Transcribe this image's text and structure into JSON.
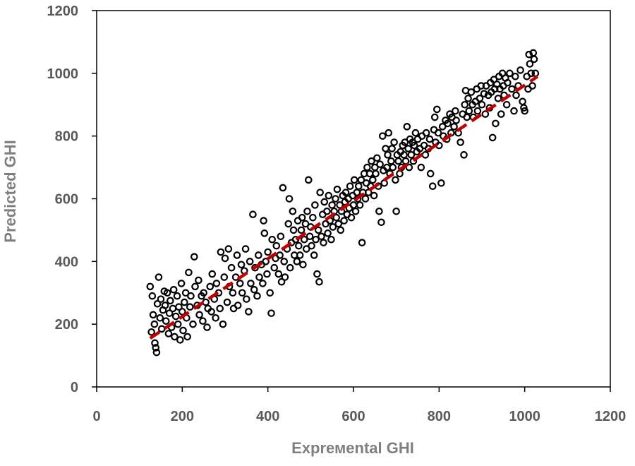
{
  "chart_data": {
    "type": "scatter",
    "title": "",
    "xlabel": "Exprемental GHI",
    "ylabel": "Predicted GHI",
    "xlim": [
      0,
      1200
    ],
    "ylim": [
      0,
      1200
    ],
    "xticks": [
      "0",
      "200",
      "400",
      "600",
      "800",
      "1000",
      "1200"
    ],
    "yticks": [
      "0",
      "200",
      "400",
      "600",
      "800",
      "1000",
      "1200"
    ],
    "grid": false,
    "legend": "none",
    "colors": {
      "marker": "#000000",
      "trendline": "#c00000",
      "axis": "#000000",
      "tick_text": "#595959",
      "axis_title": "#7f7f7f"
    },
    "trendline": {
      "style": "dashed",
      "x": [
        125,
        1030
      ],
      "y": [
        155,
        990
      ]
    },
    "series": [
      {
        "marker": "open-circle",
        "points": [
          [
            125,
            320
          ],
          [
            128,
            175
          ],
          [
            130,
            290
          ],
          [
            132,
            230
          ],
          [
            135,
            200
          ],
          [
            136,
            140
          ],
          [
            138,
            125
          ],
          [
            140,
            110
          ],
          [
            142,
            265
          ],
          [
            145,
            350
          ],
          [
            148,
            220
          ],
          [
            150,
            280
          ],
          [
            152,
            185
          ],
          [
            155,
            245
          ],
          [
            158,
            305
          ],
          [
            160,
            260
          ],
          [
            162,
            210
          ],
          [
            165,
            300
          ],
          [
            168,
            170
          ],
          [
            170,
            235
          ],
          [
            172,
            275
          ],
          [
            175,
            190
          ],
          [
            178,
            250
          ],
          [
            180,
            310
          ],
          [
            182,
            160
          ],
          [
            185,
            225
          ],
          [
            188,
            290
          ],
          [
            190,
            200
          ],
          [
            192,
            255
          ],
          [
            195,
            150
          ],
          [
            198,
            330
          ],
          [
            200,
            240
          ],
          [
            202,
            180
          ],
          [
            205,
            270
          ],
          [
            208,
            300
          ],
          [
            210,
            220
          ],
          [
            212,
            160
          ],
          [
            215,
            365
          ],
          [
            218,
            255
          ],
          [
            220,
            290
          ],
          [
            225,
            200
          ],
          [
            228,
            415
          ],
          [
            230,
            320
          ],
          [
            235,
            260
          ],
          [
            238,
            340
          ],
          [
            240,
            230
          ],
          [
            245,
            290
          ],
          [
            248,
            210
          ],
          [
            250,
            300
          ],
          [
            255,
            270
          ],
          [
            258,
            190
          ],
          [
            260,
            250
          ],
          [
            265,
            320
          ],
          [
            268,
            240
          ],
          [
            270,
            360
          ],
          [
            275,
            280
          ],
          [
            278,
            220
          ],
          [
            280,
            330
          ],
          [
            285,
            300
          ],
          [
            288,
            250
          ],
          [
            290,
            430
          ],
          [
            295,
            200
          ],
          [
            298,
            350
          ],
          [
            300,
            410
          ],
          [
            305,
            270
          ],
          [
            308,
            440
          ],
          [
            310,
            320
          ],
          [
            315,
            380
          ],
          [
            318,
            300
          ],
          [
            320,
            250
          ],
          [
            325,
            350
          ],
          [
            328,
            420
          ],
          [
            330,
            260
          ],
          [
            335,
            330
          ],
          [
            338,
            390
          ],
          [
            340,
            300
          ],
          [
            345,
            370
          ],
          [
            348,
            440
          ],
          [
            350,
            280
          ],
          [
            355,
            240
          ],
          [
            358,
            400
          ],
          [
            360,
            330
          ],
          [
            365,
            550
          ],
          [
            368,
            310
          ],
          [
            370,
            380
          ],
          [
            375,
            290
          ],
          [
            378,
            420
          ],
          [
            380,
            350
          ],
          [
            385,
            390
          ],
          [
            388,
            330
          ],
          [
            390,
            530
          ],
          [
            392,
            490
          ],
          [
            395,
            400
          ],
          [
            398,
            360
          ],
          [
            400,
            430
          ],
          [
            405,
            300
          ],
          [
            408,
            235
          ],
          [
            410,
            470
          ],
          [
            415,
            380
          ],
          [
            418,
            410
          ],
          [
            420,
            450
          ],
          [
            425,
            360
          ],
          [
            428,
            420
          ],
          [
            430,
            480
          ],
          [
            432,
            335
          ],
          [
            435,
            635
          ],
          [
            438,
            400
          ],
          [
            440,
            350
          ],
          [
            445,
            440
          ],
          [
            448,
            520
          ],
          [
            450,
            600
          ],
          [
            452,
            380
          ],
          [
            455,
            460
          ],
          [
            458,
            560
          ],
          [
            460,
            500
          ],
          [
            462,
            420
          ],
          [
            465,
            470
          ],
          [
            468,
            400
          ],
          [
            470,
            530
          ],
          [
            472,
            450
          ],
          [
            475,
            420
          ],
          [
            478,
            500
          ],
          [
            480,
            540
          ],
          [
            482,
            390
          ],
          [
            485,
            470
          ],
          [
            488,
            520
          ],
          [
            490,
            440
          ],
          [
            492,
            560
          ],
          [
            495,
            660
          ],
          [
            498,
            480
          ],
          [
            500,
            510
          ],
          [
            502,
            450
          ],
          [
            505,
            540
          ],
          [
            508,
            420
          ],
          [
            510,
            580
          ],
          [
            512,
            470
          ],
          [
            515,
            360
          ],
          [
            518,
            500
          ],
          [
            520,
            335
          ],
          [
            522,
            620
          ],
          [
            525,
            480
          ],
          [
            528,
            550
          ],
          [
            530,
            460
          ],
          [
            532,
            590
          ],
          [
            535,
            520
          ],
          [
            538,
            560
          ],
          [
            540,
            490
          ],
          [
            542,
            610
          ],
          [
            545,
            530
          ],
          [
            548,
            470
          ],
          [
            550,
            580
          ],
          [
            552,
            510
          ],
          [
            555,
            560
          ],
          [
            558,
            600
          ],
          [
            560,
            540
          ],
          [
            562,
            630
          ],
          [
            565,
            520
          ],
          [
            568,
            580
          ],
          [
            570,
            500
          ],
          [
            572,
            560
          ],
          [
            575,
            610
          ],
          [
            578,
            530
          ],
          [
            580,
            590
          ],
          [
            582,
            620
          ],
          [
            585,
            550
          ],
          [
            588,
            600
          ],
          [
            590,
            570
          ],
          [
            592,
            640
          ],
          [
            595,
            540
          ],
          [
            598,
            610
          ],
          [
            600,
            580
          ],
          [
            602,
            660
          ],
          [
            605,
            560
          ],
          [
            608,
            620
          ],
          [
            610,
            600
          ],
          [
            612,
            640
          ],
          [
            615,
            580
          ],
          [
            618,
            660
          ],
          [
            620,
            460
          ],
          [
            622,
            620
          ],
          [
            625,
            680
          ],
          [
            628,
            600
          ],
          [
            630,
            650
          ],
          [
            632,
            700
          ],
          [
            635,
            620
          ],
          [
            638,
            680
          ],
          [
            640,
            640
          ],
          [
            642,
            720
          ],
          [
            645,
            660
          ],
          [
            648,
            610
          ],
          [
            650,
            700
          ],
          [
            652,
            680
          ],
          [
            655,
            730
          ],
          [
            658,
            640
          ],
          [
            660,
            560
          ],
          [
            662,
            710
          ],
          [
            665,
            525
          ],
          [
            668,
            800
          ],
          [
            670,
            690
          ],
          [
            672,
            650
          ],
          [
            675,
            760
          ],
          [
            678,
            700
          ],
          [
            680,
            740
          ],
          [
            682,
            810
          ],
          [
            685,
            680
          ],
          [
            688,
            720
          ],
          [
            690,
            760
          ],
          [
            692,
            700
          ],
          [
            695,
            780
          ],
          [
            698,
            660
          ],
          [
            700,
            560
          ],
          [
            702,
            740
          ],
          [
            705,
            720
          ],
          [
            708,
            680
          ],
          [
            710,
            750
          ],
          [
            712,
            700
          ],
          [
            715,
            770
          ],
          [
            718,
            740
          ],
          [
            720,
            780
          ],
          [
            722,
            720
          ],
          [
            725,
            830
          ],
          [
            728,
            760
          ],
          [
            730,
            700
          ],
          [
            732,
            790
          ],
          [
            735,
            740
          ],
          [
            738,
            780
          ],
          [
            740,
            720
          ],
          [
            742,
            770
          ],
          [
            745,
            810
          ],
          [
            748,
            750
          ],
          [
            750,
            790
          ],
          [
            755,
            760
          ],
          [
            758,
            700
          ],
          [
            760,
            800
          ],
          [
            765,
            770
          ],
          [
            768,
            740
          ],
          [
            770,
            810
          ],
          [
            775,
            760
          ],
          [
            778,
            790
          ],
          [
            780,
            680
          ],
          [
            785,
            640
          ],
          [
            788,
            820
          ],
          [
            790,
            860
          ],
          [
            792,
            780
          ],
          [
            795,
            885
          ],
          [
            798,
            810
          ],
          [
            800,
            770
          ],
          [
            805,
            650
          ],
          [
            808,
            830
          ],
          [
            810,
            800
          ],
          [
            815,
            850
          ],
          [
            818,
            790
          ],
          [
            820,
            840
          ],
          [
            825,
            870
          ],
          [
            828,
            810
          ],
          [
            830,
            860
          ],
          [
            835,
            830
          ],
          [
            838,
            880
          ],
          [
            840,
            850
          ],
          [
            845,
            810
          ],
          [
            850,
            780
          ],
          [
            855,
            870
          ],
          [
            858,
            740
          ],
          [
            860,
            900
          ],
          [
            862,
            945
          ],
          [
            865,
            860
          ],
          [
            868,
            920
          ],
          [
            870,
            880
          ],
          [
            875,
            940
          ],
          [
            878,
            900
          ],
          [
            880,
            860
          ],
          [
            885,
            910
          ],
          [
            888,
            950
          ],
          [
            890,
            880
          ],
          [
            895,
            920
          ],
          [
            898,
            960
          ],
          [
            900,
            900
          ],
          [
            905,
            935
          ],
          [
            908,
            870
          ],
          [
            910,
            960
          ],
          [
            915,
            930
          ],
          [
            918,
            890
          ],
          [
            920,
            970
          ],
          [
            922,
            940
          ],
          [
            925,
            795
          ],
          [
            928,
            980
          ],
          [
            930,
            950
          ],
          [
            932,
            840
          ],
          [
            935,
            965
          ],
          [
            938,
            920
          ],
          [
            940,
            990
          ],
          [
            942,
            950
          ],
          [
            945,
            870
          ],
          [
            948,
            1000
          ],
          [
            950,
            960
          ],
          [
            952,
            930
          ],
          [
            955,
            985
          ],
          [
            958,
            900
          ],
          [
            960,
            970
          ],
          [
            965,
            1000
          ],
          [
            970,
            950
          ],
          [
            975,
            880
          ],
          [
            978,
            990
          ],
          [
            980,
            930
          ],
          [
            985,
            960
          ],
          [
            990,
            1010
          ],
          [
            995,
            910
          ],
          [
            998,
            890
          ],
          [
            1000,
            880
          ],
          [
            1005,
            990
          ],
          [
            1008,
            950
          ],
          [
            1010,
            1060
          ],
          [
            1012,
            1030
          ],
          [
            1015,
            1000
          ],
          [
            1018,
            960
          ],
          [
            1020,
            1065
          ],
          [
            1022,
            1045
          ],
          [
            1025,
            1000
          ]
        ]
      }
    ]
  }
}
